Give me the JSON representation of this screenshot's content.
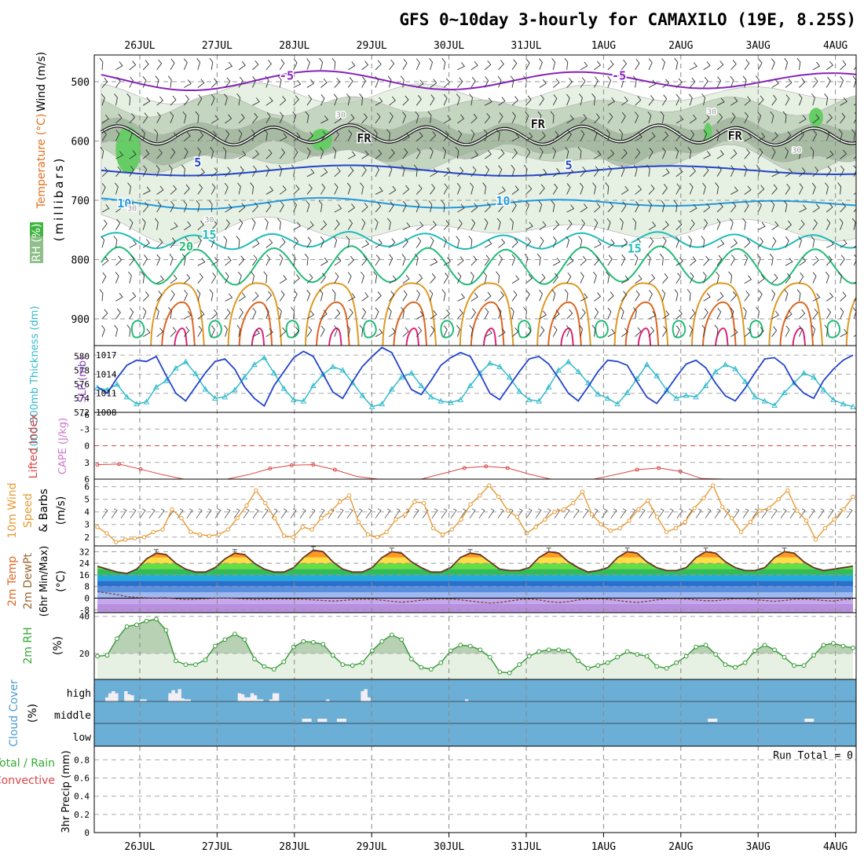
{
  "chart_data": {
    "type": "meteogram",
    "title": "GFS 0~10day 3-hourly for CAMAXILO (19E, 8.25S)",
    "dates": [
      "26JUL",
      "27JUL",
      "28JUL",
      "29JUL",
      "30JUL",
      "31JUL",
      "1AUG",
      "2AUG",
      "3AUG",
      "4AUG"
    ],
    "x_range_days": [
      -0.45,
      9.25
    ],
    "colors": {
      "purple": "#8822bb",
      "blue": "#2244cc",
      "lightblue": "#2299dd",
      "teal": "#22bbbb",
      "green": "#22bb77",
      "orange": "#dd9922",
      "red": "#dd4444",
      "magenta": "#dd2277",
      "cloud": "#6baed6",
      "rh_fill": "#d9ead3",
      "rh_line": "#339933",
      "wind_orange": "#e89a33"
    },
    "upper_panel": {
      "ylabel": "(millibars)",
      "legend": [
        "Wind (m/s)",
        "Temperature (°C)",
        "RH (%)"
      ],
      "yticks": [
        500,
        600,
        700,
        800,
        900
      ],
      "ylim": [
        455,
        945
      ],
      "isotherms": [
        {
          "label": "-5",
          "color": "#8822bb",
          "base": 498,
          "amp": 14,
          "period": 3.3,
          "phase": 0.4
        },
        {
          "label": "FR",
          "color": "#111111",
          "base": 590,
          "amp": 14,
          "period": 1.0,
          "phase": 0.2
        },
        {
          "label": "5",
          "color": "#2244cc",
          "base": 650,
          "amp": 6,
          "period": 4.5,
          "phase": 1.0
        },
        {
          "label": "10",
          "color": "#2299dd",
          "base": 705,
          "amp": 7,
          "period": 3.0,
          "phase": 0.0
        },
        {
          "label": "15",
          "color": "#22bbbb",
          "base": 768,
          "amp": 12,
          "period": 1.0,
          "phase": 0.3
        },
        {
          "label": "20",
          "color": "#22bb77",
          "base": 810,
          "amp": 30,
          "period": 1.0,
          "phase": 0.1
        }
      ],
      "contour_labels": [
        {
          "text": "-5",
          "day": 1.9,
          "p": 497,
          "color": "#8822bb"
        },
        {
          "text": "-5",
          "day": 6.2,
          "p": 497,
          "color": "#8822bb"
        },
        {
          "text": "FR",
          "day": 2.9,
          "p": 602,
          "color": "#111111"
        },
        {
          "text": "FR",
          "day": 5.15,
          "p": 578,
          "color": "#111111"
        },
        {
          "text": "FR",
          "day": 7.7,
          "p": 598,
          "color": "#111111"
        },
        {
          "text": "5",
          "day": 0.75,
          "p": 643,
          "color": "#2244cc"
        },
        {
          "text": "5",
          "day": 5.55,
          "p": 648,
          "color": "#2244cc"
        },
        {
          "text": "10",
          "day": -0.2,
          "p": 712,
          "color": "#2299dd"
        },
        {
          "text": "10",
          "day": 4.7,
          "p": 708,
          "color": "#2299dd"
        },
        {
          "text": "15",
          "day": 0.9,
          "p": 765,
          "color": "#22bbbb"
        },
        {
          "text": "15",
          "day": 6.4,
          "p": 788,
          "color": "#22bbbb"
        },
        {
          "text": "20",
          "day": 0.6,
          "p": 785,
          "color": "#22bb77"
        },
        {
          "text": "30",
          "day": 2.6,
          "p": 560,
          "color": "#999999"
        },
        {
          "text": "30",
          "day": 7.4,
          "p": 555,
          "color": "#999999"
        },
        {
          "text": "30",
          "day": 0.9,
          "p": 737,
          "color": "#999999"
        },
        {
          "text": "30",
          "day": -0.1,
          "p": 718,
          "color": "#999999"
        },
        {
          "text": "30",
          "day": 8.5,
          "p": 620,
          "color": "#999999"
        }
      ]
    },
    "slp_thickness_panel": {
      "ylabel_left": "1000-500mb Thickness (dm)",
      "ylabel_right": "SLP (mb)",
      "left_ticks": [
        572,
        574,
        576,
        578,
        580
      ],
      "right_ticks": [
        1008,
        1011,
        1014,
        1017
      ],
      "left_range": [
        572,
        581.5
      ],
      "right_range": [
        1008,
        1018.5
      ],
      "thickness": [
        575.5,
        575.2,
        576.0,
        574.2,
        573.2,
        573.5,
        575.6,
        576.5,
        578.3,
        579.2,
        577.5,
        575.3,
        574.0,
        574.2,
        575.2,
        577.0,
        578.8,
        579.8,
        577.6,
        575.4,
        573.8,
        573.6,
        575.8,
        577.4,
        578.5,
        578.0,
        576.2,
        574.4,
        572.8,
        573.2,
        575.3,
        577.0,
        577.6,
        575.8,
        574.2,
        573.6,
        573.4,
        573.8,
        575.8,
        577.6,
        579.0,
        578.5,
        577.0,
        575.0,
        573.8,
        573.6,
        575.6,
        578.0,
        579.2,
        577.8,
        576.2,
        574.6,
        574.0,
        573.2,
        574.8,
        576.8,
        578.8,
        577.2,
        575.2,
        574.0,
        574.4,
        574.2,
        575.8,
        577.8,
        578.8,
        578.2,
        576.4,
        574.2,
        573.6,
        573.0,
        574.8,
        576.2,
        577.6,
        577.0,
        575.2,
        573.8,
        573.2,
        572.8
      ],
      "slp": [
        1012.0,
        1011.0,
        1013.4,
        1015.4,
        1016.2,
        1016.0,
        1016.8,
        1013.8,
        1011.0,
        1009.8,
        1012.0,
        1014.2,
        1016.0,
        1016.4,
        1014.8,
        1012.0,
        1010.2,
        1009.0,
        1012.2,
        1014.4,
        1016.6,
        1017.6,
        1016.8,
        1014.0,
        1011.2,
        1010.2,
        1012.8,
        1015.2,
        1016.8,
        1018.2,
        1017.4,
        1014.4,
        1011.6,
        1010.8,
        1013.0,
        1015.4,
        1016.6,
        1017.4,
        1016.8,
        1014.0,
        1011.0,
        1010.0,
        1012.2,
        1014.4,
        1016.4,
        1016.8,
        1015.6,
        1013.4,
        1011.0,
        1009.8,
        1012.0,
        1014.4,
        1016.2,
        1016.0,
        1015.4,
        1012.8,
        1010.4,
        1009.4,
        1011.4,
        1013.6,
        1015.6,
        1016.2,
        1015.0,
        1012.6,
        1010.6,
        1009.8,
        1011.8,
        1014.2,
        1016.4,
        1016.6,
        1015.4,
        1012.6,
        1011.0,
        1010.2,
        1013.0,
        1014.8,
        1016.2,
        1017.0
      ]
    },
    "li_cape_panel": {
      "ylabel_left": "Lifted Index",
      "ylabel_right": "CAPE (J/kg)",
      "yticks": [
        -3,
        0,
        3,
        6
      ],
      "ylim": [
        -6,
        6
      ],
      "lifted_index": [
        3.4,
        3.3,
        4.2,
        5.2,
        6.0,
        6.6,
        6.4,
        5.2,
        4.1,
        3.5,
        3.4,
        4.3,
        5.5,
        6.3,
        6.6,
        6.2,
        5.0,
        4.0,
        3.7,
        4.0,
        5.1,
        6.3,
        6.7,
        6.4,
        5.2,
        4.3,
        4.0,
        4.6,
        5.9,
        6.6,
        6.6,
        6.5,
        6.4,
        6.0,
        6.6,
        6.6
      ]
    },
    "wind10m_panel": {
      "ylabel": "10m Wind Speed & Barbs (m/s)",
      "yticks": [
        2,
        3,
        4,
        5,
        6
      ],
      "ylim": [
        1.3,
        6.6
      ],
      "speed": [
        2.8,
        2.3,
        1.6,
        1.8,
        1.9,
        2.0,
        2.4,
        2.6,
        4.2,
        3.5,
        2.4,
        2.2,
        2.1,
        2.2,
        2.6,
        3.5,
        4.5,
        5.7,
        4.7,
        3.5,
        2.1,
        2.0,
        2.8,
        2.6,
        3.5,
        4.0,
        4.8,
        5.3,
        3.2,
        2.2,
        2.0,
        2.4,
        3.4,
        3.8,
        4.8,
        4.7,
        2.7,
        2.2,
        2.6,
        3.4,
        4.6,
        5.3,
        6.1,
        5.2,
        4.1,
        3.6,
        2.3,
        2.8,
        3.4,
        4.0,
        4.2,
        4.7,
        5.6,
        3.8,
        3.0,
        2.5,
        2.7,
        3.3,
        4.2,
        4.9,
        3.6,
        2.4,
        2.7,
        3.2,
        4.3,
        5.1,
        6.1,
        4.4,
        3.5,
        2.4,
        3.2,
        4.1,
        4.3,
        5.0,
        5.7,
        4.1,
        3.3,
        1.8,
        2.7,
        3.4,
        4.2,
        5.2
      ]
    },
    "temp_panel": {
      "ylabel": "2m Temp 2m DewPt (6hr Min/Max) (°C)",
      "yticks": [
        -8,
        0,
        8,
        16,
        24,
        32
      ],
      "ylim": [
        -10,
        36
      ],
      "temp": [
        22,
        20,
        18,
        17,
        20,
        27,
        31,
        30,
        24,
        20,
        18,
        18,
        21,
        27,
        31,
        30,
        24,
        20,
        18,
        18,
        21,
        28,
        33,
        32,
        25,
        20,
        18,
        18,
        21,
        28,
        32,
        31,
        25,
        21,
        18,
        18,
        21,
        28,
        31,
        30,
        25,
        20,
        19,
        19,
        21,
        28,
        32,
        31,
        25,
        21,
        18,
        19,
        21,
        28,
        32,
        31,
        25,
        21,
        19,
        19,
        21,
        28,
        32,
        31,
        25,
        21,
        19,
        19,
        21,
        28,
        32,
        31,
        25,
        21,
        19,
        20,
        21,
        22
      ],
      "dewpoint": [
        4.5,
        3.5,
        2.5,
        1.0,
        0.5,
        0.2,
        0.0,
        0.3,
        -0.5,
        -1.0,
        -0.8,
        -0.4,
        0.0,
        0.1,
        -0.2,
        -0.6,
        -1.0,
        -0.8,
        -0.5,
        -0.6,
        -0.6,
        -0.8,
        -1.2,
        -1.6,
        -2.0,
        -1.6,
        -1.0,
        -0.8,
        -0.7,
        -1.4,
        -2.2,
        -2.8,
        -2.2,
        -1.4,
        -0.8,
        -0.5,
        -0.6,
        -1.2,
        -2.0,
        -2.8,
        -3.4,
        -3.0,
        -2.0,
        -1.0,
        -0.6,
        -1.2,
        -2.4,
        -3.0,
        -2.4,
        -1.2,
        -0.6,
        -0.4,
        -0.8,
        -1.6,
        -2.4,
        -3.0,
        -2.2,
        -1.2,
        -0.4,
        -0.2,
        -0.6,
        -1.2,
        -1.8,
        -1.8,
        -1.0,
        -0.4,
        -0.4,
        -1.0,
        -1.6,
        -2.2,
        -1.6,
        -0.8,
        -0.6,
        -1.0,
        -1.6,
        -2.0,
        -1.0,
        -0.6
      ]
    },
    "rh_panel": {
      "ylabel": "2m RH (%)",
      "yticks": [
        20,
        40
      ],
      "ylim": [
        6,
        42
      ],
      "rh": [
        18.5,
        19.0,
        28,
        34.5,
        35.5,
        37.5,
        38.5,
        32.5,
        16.0,
        14.0,
        14.0,
        16.5,
        24,
        27.5,
        30.5,
        27.5,
        17,
        13,
        11.5,
        15.5,
        23.5,
        26.5,
        26,
        25,
        19,
        14,
        13.5,
        15,
        21.5,
        26.5,
        30,
        27.5,
        17,
        12.5,
        11.5,
        15,
        21.5,
        24.5,
        24,
        22,
        18,
        10,
        9.5,
        14,
        18.5,
        21,
        22,
        22,
        21.5,
        16,
        12,
        13.5,
        15,
        18,
        21,
        19.5,
        18.5,
        13,
        12,
        15,
        18.5,
        23.5,
        24.5,
        19.5,
        14,
        12.5,
        15,
        21.5,
        24.5,
        22,
        18,
        13.5,
        13.5,
        19,
        24.5,
        25.5,
        24,
        23
      ]
    },
    "cloud_panel": {
      "ylabel": "Cloud Cover (%)",
      "levels": [
        "high",
        "middle",
        "low"
      ],
      "high": [
        20,
        40,
        50,
        40,
        0,
        0,
        50,
        35,
        30,
        0,
        0,
        10,
        10,
        0,
        0,
        0,
        0,
        0,
        0,
        0,
        40,
        55,
        40,
        60,
        15,
        10,
        10,
        0,
        0,
        0,
        0,
        0,
        0,
        0,
        0,
        0,
        0,
        0,
        0,
        0,
        0,
        0,
        40,
        35,
        20,
        20,
        40,
        30,
        10,
        10,
        0,
        0,
        10,
        40,
        40,
        0,
        0,
        0,
        0,
        0,
        0,
        0,
        0,
        0,
        0,
        0,
        0,
        0,
        0,
        0,
        10,
        0,
        0,
        0,
        0,
        0,
        0,
        0,
        0,
        0,
        0,
        50,
        60,
        20,
        0,
        0,
        0,
        0,
        0,
        0,
        0,
        0,
        0,
        0,
        0,
        0,
        0,
        0,
        0,
        0,
        0,
        0,
        0,
        0,
        0,
        0,
        0,
        0,
        0,
        0,
        0,
        0,
        0,
        0,
        10,
        0,
        0,
        0,
        0,
        0,
        0,
        0,
        0,
        0,
        0,
        0,
        0,
        0,
        0,
        0,
        0,
        0,
        0,
        0,
        0,
        0,
        0,
        0,
        0,
        0,
        0,
        0,
        0,
        0,
        0,
        0,
        0,
        0,
        0,
        0,
        0,
        0,
        0,
        0,
        0,
        0,
        0,
        0,
        0,
        0,
        0,
        0,
        0,
        0,
        0,
        0,
        0,
        0,
        0,
        0,
        0,
        0,
        0,
        0,
        0,
        0,
        0,
        0,
        0,
        0,
        0,
        0,
        0,
        0,
        0,
        0,
        0,
        0,
        0,
        0,
        0,
        0,
        0,
        0,
        0,
        0,
        0,
        0,
        0,
        0,
        0,
        0,
        0,
        0,
        0,
        0,
        0,
        0,
        0,
        0,
        0,
        0,
        0,
        0,
        0,
        0,
        0,
        0,
        0,
        0,
        0,
        0,
        0,
        0,
        0,
        0,
        0,
        0,
        0,
        0,
        0,
        0,
        0,
        0,
        0,
        0,
        0,
        0,
        0
      ],
      "middle_blips_days": [
        2.1,
        2.3,
        2.55,
        7.35,
        8.6
      ]
    },
    "precip_panel": {
      "ylabel_left": "Total / Rain Convective",
      "ylabel_right": "3hr Precip (mm)",
      "yticks": [
        0,
        0.2,
        0.4,
        0.6,
        0.8
      ],
      "ylim": [
        0,
        0.95
      ],
      "run_total": "Run Total = 0",
      "values": []
    }
  }
}
